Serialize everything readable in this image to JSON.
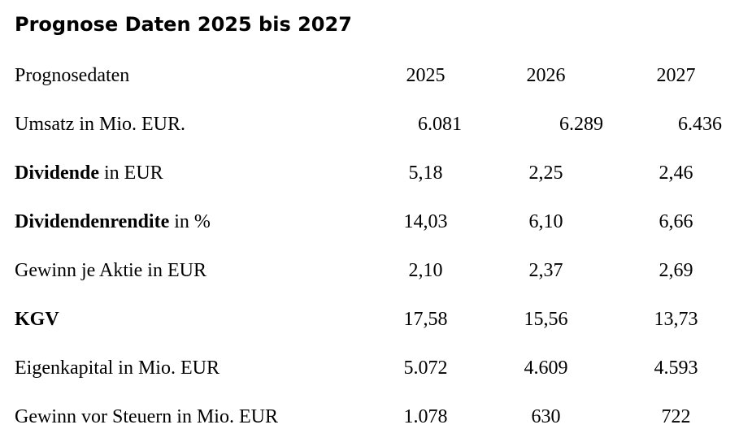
{
  "title": "Prognose Daten 2025 bis 2027",
  "colors": {
    "text": "#000000",
    "background": "#ffffff"
  },
  "table": {
    "header": {
      "label": "Prognosedaten",
      "years": [
        "2025",
        "2026",
        "2027"
      ]
    },
    "rows": [
      {
        "label_bold": "",
        "label_rest": "Umsatz in Mio. EUR.",
        "values": [
          "6.081",
          "6.289",
          "6.436"
        ]
      },
      {
        "label_bold": "Dividende",
        "label_rest": " in EUR",
        "values": [
          "5,18",
          "2,25",
          "2,46"
        ]
      },
      {
        "label_bold": "Dividendenrendite",
        "label_rest": " in %",
        "values": [
          "14,03",
          "6,10",
          "6,66"
        ]
      },
      {
        "label_bold": "",
        "label_rest": "Gewinn je Aktie in EUR",
        "values": [
          "2,10",
          "2,37",
          "2,69"
        ]
      },
      {
        "label_bold": "KGV",
        "label_rest": "",
        "values": [
          "17,58",
          "15,56",
          "13,73"
        ]
      },
      {
        "label_bold": "",
        "label_rest": "Eigenkapital in Mio. EUR",
        "values": [
          "5.072",
          "4.609",
          "4.593"
        ]
      },
      {
        "label_bold": "",
        "label_rest": "Gewinn vor Steuern in Mio. EUR",
        "values": [
          "1.078",
          "630",
          "722"
        ]
      }
    ]
  }
}
